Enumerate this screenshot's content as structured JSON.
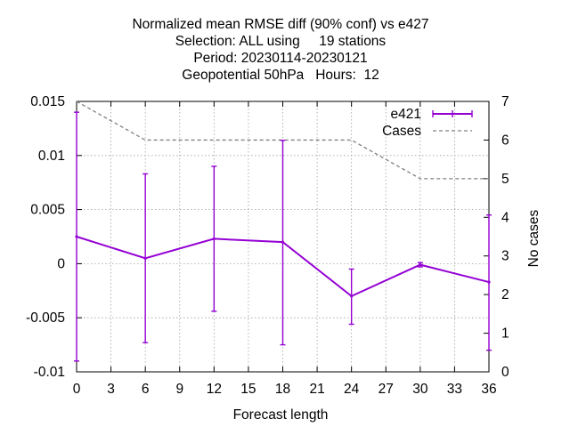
{
  "chart_data": {
    "type": "line",
    "title_lines": [
      "Normalized mean RMSE diff (90% conf) vs e427",
      "Selection: ALL using     19 stations",
      "Period: 20230114-20230121",
      "Geopotential 50hPa   Hours:  12"
    ],
    "xlabel": "Forecast length",
    "ylabel": "",
    "y2label": "No cases",
    "xlim": [
      0,
      36
    ],
    "ylim": [
      -0.01,
      0.015
    ],
    "y2lim": [
      0,
      7
    ],
    "x_ticks": [
      0,
      3,
      6,
      9,
      12,
      15,
      18,
      21,
      24,
      27,
      30,
      33,
      36
    ],
    "x_tick_labels": [
      "0",
      "3",
      "6",
      "9",
      "12",
      "15",
      "18",
      "21",
      "24",
      "27",
      "30",
      "33",
      "36"
    ],
    "y_ticks": [
      -0.01,
      -0.005,
      0,
      0.005,
      0.01,
      0.015
    ],
    "y_tick_labels": [
      "-0.01",
      "-0.005",
      "0",
      "0.005",
      "0.01",
      "0.015"
    ],
    "y2_ticks": [
      0,
      1,
      2,
      3,
      4,
      5,
      6,
      7
    ],
    "y2_tick_labels": [
      "0",
      "1",
      "2",
      "3",
      "4",
      "5",
      "6",
      "7"
    ],
    "grid": true,
    "legend_position": "top-right",
    "x": [
      0,
      6,
      12,
      18,
      24,
      30,
      36
    ],
    "series": [
      {
        "name": "e421",
        "axis": "left",
        "color": "#9400d3",
        "values": [
          0.0025,
          0.0005,
          0.0023,
          0.002,
          -0.003,
          -0.0001,
          -0.0017
        ],
        "err_low": [
          -0.009,
          -0.0073,
          -0.0044,
          -0.0075,
          -0.0056,
          -0.0003,
          -0.008
        ],
        "err_high": [
          0.014,
          0.0083,
          0.009,
          0.0114,
          -0.0005,
          0.0001,
          0.0045
        ]
      },
      {
        "name": "Cases",
        "axis": "right",
        "color": "#808080",
        "style": "dashed",
        "values": [
          7,
          6,
          6,
          6,
          6,
          5,
          5
        ]
      }
    ]
  }
}
